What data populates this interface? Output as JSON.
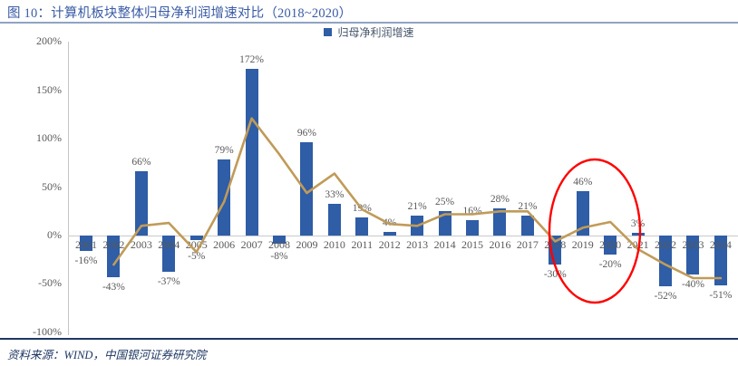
{
  "figure": {
    "title": "图 10：计算机板块整体归母净利润增速对比（2018~2020）",
    "source": "资料来源：WIND，中国银河证券研究院"
  },
  "legend": {
    "label": "归母净利润增速",
    "swatch_color": "#2F5DA6",
    "position": "top-center"
  },
  "colors": {
    "bar": "#2F5DA6",
    "trend_line": "#C09B59",
    "highlight_ellipse": "#FF0000",
    "axis": "#C6C6C6",
    "labels": "#595959",
    "title": "#3A5BA5",
    "navy": "#1F3864"
  },
  "chart_data": {
    "type": "bar",
    "title": "计算机板块整体归母净利润增速对比（2018~2020）",
    "categories": [
      "2001",
      "2002",
      "2003",
      "2004",
      "2005",
      "2006",
      "2007",
      "2008",
      "2009",
      "2010",
      "2011",
      "2012",
      "2013",
      "2014",
      "2015",
      "2016",
      "2017",
      "2018",
      "2019",
      "2020",
      "2021",
      "2022",
      "2023",
      "2024"
    ],
    "series": [
      {
        "name": "归母净利润增速",
        "type": "bar",
        "color": "#2F5DA6",
        "values": [
          -16,
          -43,
          66,
          -37,
          -5,
          79,
          172,
          -8,
          96,
          33,
          19,
          4,
          21,
          25,
          16,
          28,
          21,
          -30,
          46,
          -20,
          3,
          -52,
          -40,
          -51
        ],
        "data_labels": [
          "-16%",
          "-43%",
          "66%",
          "-37%",
          "-5%",
          "79%",
          "172%",
          "-8%",
          "96%",
          "33%",
          "19%",
          "4%",
          "21%",
          "25%",
          "16%",
          "28%",
          "21%",
          "-30%",
          "46%",
          "-20%",
          "3%",
          "-52%",
          "-40%",
          "-51%"
        ]
      },
      {
        "name": "unlabeled-trend-line",
        "type": "line",
        "color": "#C09B59",
        "start_category": "2002",
        "values": [
          -30,
          10,
          13,
          -17,
          35,
          121,
          84,
          44,
          64,
          27,
          12,
          10,
          22,
          22,
          25,
          25,
          -6,
          8,
          14,
          -14,
          -30,
          -44,
          -44
        ]
      }
    ],
    "y_axis": {
      "tick_values": [
        200,
        150,
        100,
        50,
        0,
        -50,
        -100
      ],
      "tick_labels": [
        "200%",
        "150%",
        "100%",
        "50%",
        "0%",
        "-50%",
        "-100%"
      ],
      "min": -100,
      "max": 200
    },
    "grid": false,
    "annotation": {
      "shape": "ellipse",
      "highlighted_years": [
        "2018",
        "2019",
        "2020"
      ],
      "color": "#FF0000"
    }
  }
}
